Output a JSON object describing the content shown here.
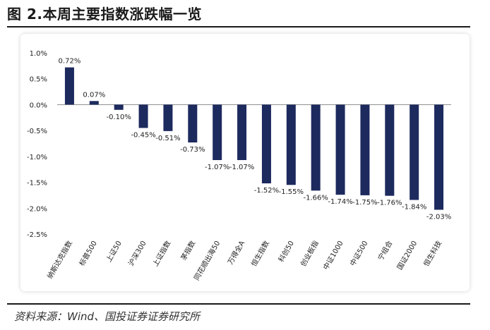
{
  "title": "图 2.本周主要指数涨跌幅一览",
  "source": "资料来源：Wind、国投证券证券研究所",
  "colors": {
    "bar": "#1d2a5e",
    "axis": "#888888",
    "text": "#222222"
  },
  "chart_data": {
    "type": "bar",
    "title": "",
    "xlabel": "",
    "ylabel": "",
    "ylim": [
      -2.5,
      1.0
    ],
    "yticks": [
      1.0,
      0.5,
      0.0,
      -0.5,
      -1.0,
      -1.5,
      -2.0,
      -2.5
    ],
    "ytick_labels": [
      "1.0%",
      "0.5%",
      "0.0%",
      "-0.5%",
      "-1.0%",
      "-1.5%",
      "-2.0%",
      "-2.5%"
    ],
    "categories": [
      "纳斯达克指数",
      "标普500",
      "上证50",
      "沪深300",
      "上证指数",
      "茅指数",
      "同花顺出海50",
      "万得全A",
      "恒生指数",
      "科创50",
      "创业板指",
      "中证1000",
      "中证500",
      "宁组合",
      "国证2000",
      "恒生科技"
    ],
    "values": [
      0.72,
      0.07,
      -0.1,
      -0.45,
      -0.51,
      -0.73,
      -1.07,
      -1.07,
      -1.52,
      -1.55,
      -1.66,
      -1.74,
      -1.75,
      -1.76,
      -1.84,
      -2.03
    ],
    "value_labels": [
      "0.72%",
      "0.07%",
      "-0.10%",
      "-0.45%",
      "-0.51%",
      "-0.73%",
      "-1.07%",
      "-1.07%",
      "-1.52%",
      "-1.55%",
      "-1.66%",
      "-1.74%",
      "-1.75%",
      "-1.76%",
      "-1.84%",
      "-2.03%"
    ],
    "grid": false,
    "legend": "none"
  }
}
